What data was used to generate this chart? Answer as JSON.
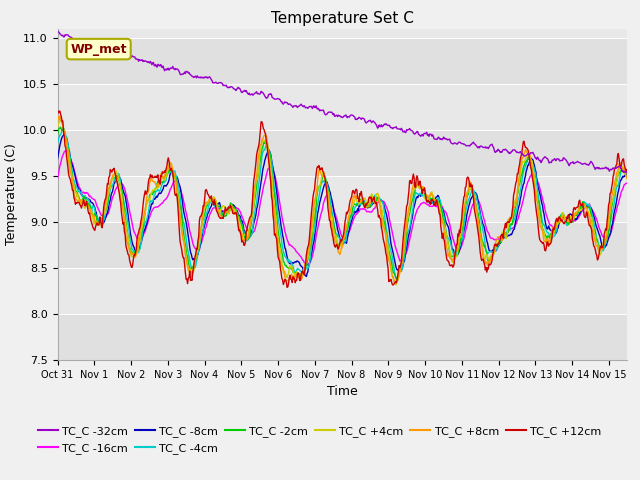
{
  "title": "Temperature Set C",
  "xlabel": "Time",
  "ylabel": "Temperature (C)",
  "ylim": [
    7.5,
    11.1
  ],
  "xlim": [
    0,
    15.5
  ],
  "xtick_positions": [
    0,
    1,
    2,
    3,
    4,
    5,
    6,
    7,
    8,
    9,
    10,
    11,
    12,
    13,
    14,
    15
  ],
  "xtick_labels": [
    "Oct 31",
    "Nov 1",
    "Nov 2",
    "Nov 3",
    "Nov 4",
    "Nov 5",
    "Nov 6",
    "Nov 7",
    "Nov 8",
    "Nov 9",
    "Nov 10",
    "Nov 11",
    "Nov 12",
    "Nov 13",
    "Nov 14",
    "Nov 15"
  ],
  "ytick_positions": [
    7.5,
    8.0,
    8.5,
    9.0,
    9.5,
    10.0,
    10.5,
    11.0
  ],
  "series_colors": {
    "TC_C -32cm": "#9900cc",
    "TC_C -16cm": "#ff00ff",
    "TC_C -8cm": "#0000bb",
    "TC_C -4cm": "#00cccc",
    "TC_C -2cm": "#00cc00",
    "TC_C +4cm": "#cccc00",
    "TC_C +8cm": "#ff9900",
    "TC_C +12cm": "#cc0000"
  },
  "wp_met_label": "WP_met",
  "fig_bg": "#f0f0f0",
  "plot_bg": "#e8e8e8",
  "band_colors": [
    "#e0e0e0",
    "#e8e8e8"
  ],
  "grid_color": "#ffffff",
  "title_fontsize": 11,
  "tick_fontsize": 7,
  "legend_fontsize": 8,
  "axis_label_fontsize": 9
}
